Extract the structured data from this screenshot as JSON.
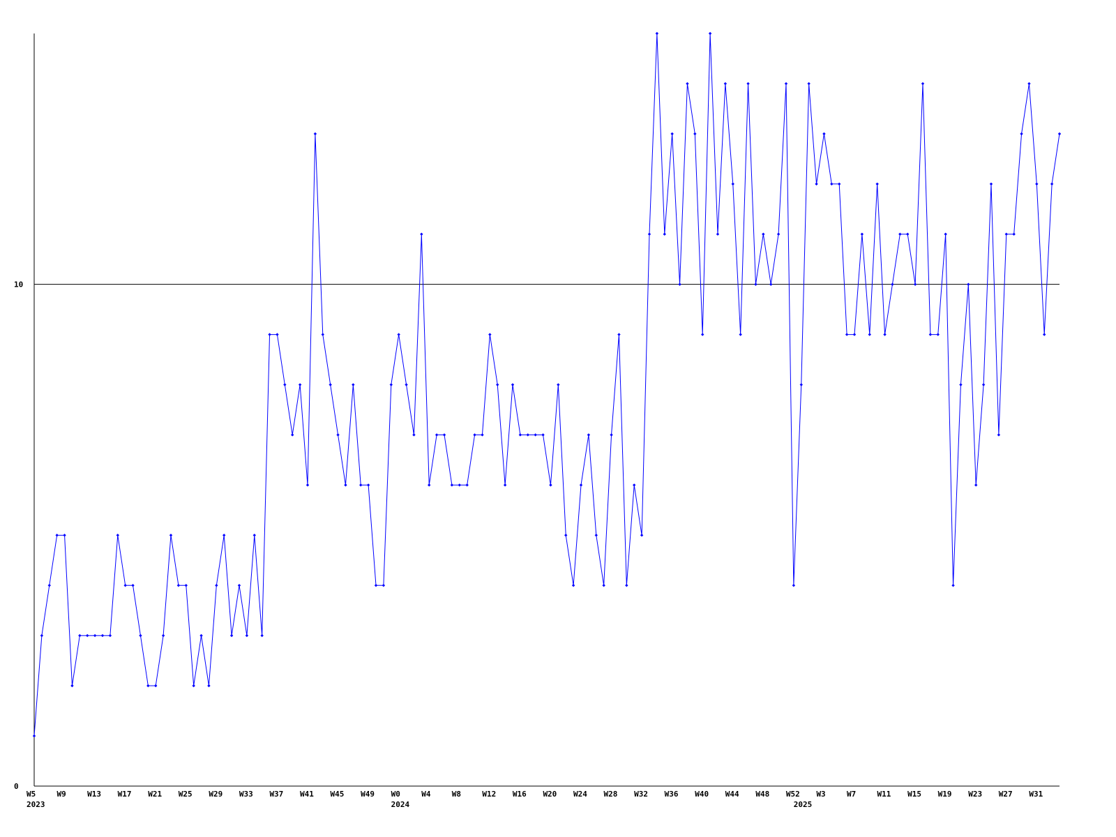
{
  "chart_data": {
    "type": "line",
    "categories": [
      "W5",
      null,
      null,
      null,
      "W9",
      null,
      null,
      null,
      "W13",
      null,
      null,
      null,
      "W17",
      null,
      null,
      null,
      "W21",
      null,
      null,
      null,
      "W25",
      null,
      null,
      null,
      "W29",
      null,
      null,
      null,
      "W33",
      null,
      null,
      null,
      "W37",
      null,
      null,
      null,
      "W41",
      null,
      null,
      null,
      "W45",
      null,
      null,
      null,
      "W49",
      null,
      null,
      null,
      "W0",
      null,
      null,
      null,
      "W4",
      null,
      null,
      null,
      "W8",
      null,
      null,
      null,
      "W12",
      null,
      null,
      null,
      "W16",
      null,
      null,
      null,
      "W20",
      null,
      null,
      null,
      "W24",
      null,
      null,
      null,
      "W28",
      null,
      null,
      null,
      "W32",
      null,
      null,
      null,
      "W36",
      null,
      null,
      null,
      "W40",
      null,
      null,
      null,
      "W44",
      null,
      null,
      null,
      "W48",
      null,
      null,
      null,
      "W52",
      null,
      null,
      null,
      "W3",
      null,
      null,
      null,
      "W7",
      null,
      null,
      null,
      "W11",
      null,
      null,
      null,
      "W15",
      null,
      null,
      null,
      "W19",
      null,
      null,
      null,
      "W23",
      null,
      null,
      null,
      "W27",
      null,
      null,
      null,
      "W31",
      null,
      null,
      null
    ],
    "category_years": [
      "2023",
      null,
      null,
      null,
      null,
      null,
      null,
      null,
      null,
      null,
      null,
      null,
      null,
      null,
      null,
      null,
      null,
      null,
      null,
      null,
      null,
      null,
      null,
      null,
      null,
      null,
      null,
      null,
      null,
      null,
      null,
      null,
      null,
      null,
      null,
      null,
      null,
      null,
      null,
      null,
      null,
      null,
      null,
      null,
      null,
      null,
      null,
      null,
      "2024",
      null,
      null,
      null,
      null,
      null,
      null,
      null,
      null,
      null,
      null,
      null,
      null,
      null,
      null,
      null,
      null,
      null,
      null,
      null,
      null,
      null,
      null,
      null,
      null,
      null,
      null,
      null,
      null,
      null,
      null,
      null,
      null,
      null,
      null,
      null,
      null,
      null,
      null,
      null,
      null,
      null,
      null,
      null,
      null,
      null,
      null,
      null,
      null,
      null,
      null,
      null,
      null,
      "2025",
      null,
      null,
      null,
      null,
      null,
      null,
      null,
      null,
      null,
      null,
      null,
      null,
      null,
      null,
      null,
      null,
      null,
      null,
      null,
      null,
      null,
      null,
      null,
      null,
      null,
      null,
      null,
      null,
      null,
      null,
      null,
      null,
      null,
      null
    ],
    "series": [
      {
        "color": "#0000ff",
        "values": [
          1,
          3,
          4,
          5,
          5,
          2,
          3,
          3,
          3,
          3,
          3,
          5,
          4,
          4,
          3,
          2,
          2,
          3,
          5,
          4,
          4,
          2,
          3,
          2,
          4,
          5,
          3,
          4,
          3,
          5,
          3,
          9,
          9,
          8,
          7,
          8,
          6,
          13,
          9,
          8,
          7,
          6,
          8,
          6,
          6,
          4,
          4,
          8,
          9,
          8,
          7,
          11,
          6,
          7,
          7,
          6,
          6,
          6,
          7,
          7,
          9,
          8,
          6,
          8,
          7,
          7,
          7,
          7,
          6,
          8,
          5,
          4,
          6,
          7,
          5,
          4,
          7,
          9,
          4,
          6,
          5,
          11,
          15,
          11,
          13,
          10,
          14,
          13,
          9,
          15,
          11,
          14,
          12,
          9,
          14,
          10,
          11,
          10,
          11,
          14,
          4,
          8,
          14,
          12,
          13,
          12,
          12,
          9,
          9,
          11,
          9,
          12,
          9,
          10,
          11,
          11,
          10,
          14,
          9,
          9,
          11,
          4,
          8,
          10,
          6,
          8,
          12,
          7,
          11,
          11,
          13,
          14,
          12,
          9,
          12,
          13
        ]
      }
    ],
    "ylim": [
      0,
      15
    ],
    "yticks": [
      0,
      10
    ],
    "grid": true
  }
}
